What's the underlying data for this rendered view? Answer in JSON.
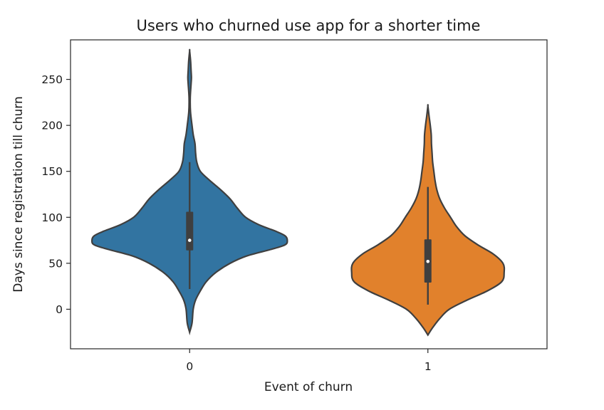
{
  "chart_data": {
    "type": "violin",
    "title": "Users who churned use app for a shorter time",
    "xlabel": "Event of churn",
    "ylabel": "Days since registration till churn",
    "categories": [
      "0",
      "1"
    ],
    "yticks": [
      0,
      50,
      100,
      150,
      200,
      250
    ],
    "ylim": [
      -43,
      293
    ],
    "grid": false,
    "colors": [
      "#3274a1",
      "#e1812c"
    ],
    "series": [
      {
        "category": "0",
        "color": "#3274a1",
        "min": -25,
        "max": 281,
        "q1": 64,
        "median": 75,
        "q3": 106,
        "whisker_low": 22,
        "whisker_high": 160,
        "density_half_width": [
          [
            -25,
            0.0
          ],
          [
            -15,
            0.02
          ],
          [
            0,
            0.03
          ],
          [
            10,
            0.05
          ],
          [
            20,
            0.09
          ],
          [
            30,
            0.14
          ],
          [
            40,
            0.22
          ],
          [
            50,
            0.34
          ],
          [
            58,
            0.48
          ],
          [
            65,
            0.68
          ],
          [
            70,
            0.8
          ],
          [
            75,
            0.82
          ],
          [
            80,
            0.8
          ],
          [
            85,
            0.72
          ],
          [
            92,
            0.58
          ],
          [
            100,
            0.47
          ],
          [
            110,
            0.4
          ],
          [
            120,
            0.34
          ],
          [
            130,
            0.26
          ],
          [
            140,
            0.17
          ],
          [
            150,
            0.09
          ],
          [
            160,
            0.06
          ],
          [
            170,
            0.05
          ],
          [
            180,
            0.045
          ],
          [
            190,
            0.03
          ],
          [
            200,
            0.02
          ],
          [
            215,
            0.007
          ],
          [
            230,
            0.005
          ],
          [
            245,
            0.012
          ],
          [
            252,
            0.015
          ],
          [
            260,
            0.012
          ],
          [
            270,
            0.008
          ],
          [
            281,
            0.0
          ]
        ]
      },
      {
        "category": "1",
        "color": "#e1812c",
        "min": -28,
        "max": 221,
        "q1": 29,
        "median": 52,
        "q3": 76,
        "whisker_low": 5,
        "whisker_high": 133,
        "density_half_width": [
          [
            -28,
            0.0
          ],
          [
            -20,
            0.04
          ],
          [
            -10,
            0.1
          ],
          [
            0,
            0.18
          ],
          [
            10,
            0.33
          ],
          [
            20,
            0.5
          ],
          [
            30,
            0.62
          ],
          [
            40,
            0.64
          ],
          [
            50,
            0.63
          ],
          [
            60,
            0.55
          ],
          [
            70,
            0.42
          ],
          [
            80,
            0.31
          ],
          [
            90,
            0.24
          ],
          [
            100,
            0.19
          ],
          [
            110,
            0.14
          ],
          [
            120,
            0.1
          ],
          [
            130,
            0.075
          ],
          [
            140,
            0.06
          ],
          [
            150,
            0.05
          ],
          [
            160,
            0.04
          ],
          [
            170,
            0.035
          ],
          [
            180,
            0.03
          ],
          [
            190,
            0.028
          ],
          [
            200,
            0.02
          ],
          [
            210,
            0.01
          ],
          [
            221,
            0.0
          ]
        ]
      }
    ]
  }
}
